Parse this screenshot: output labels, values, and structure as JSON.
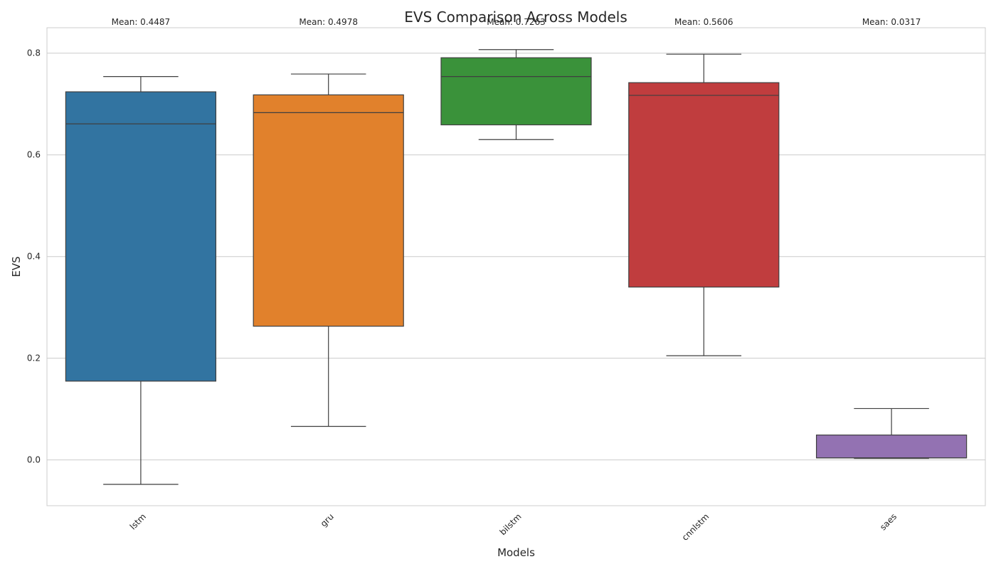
{
  "chart_data": {
    "type": "box",
    "title": "EVS Comparison Across Models",
    "xlabel": "Models",
    "ylabel": "EVS",
    "ylim": [
      -0.09,
      0.85
    ],
    "yticks": [
      0.0,
      0.2,
      0.4,
      0.6,
      0.8
    ],
    "ytick_labels": [
      "0.0",
      "0.2",
      "0.4",
      "0.6",
      "0.8"
    ],
    "grid": true,
    "categories": [
      "lstm",
      "gru",
      "bilstm",
      "cnnlstm",
      "saes"
    ],
    "boxes": [
      {
        "name": "lstm",
        "color": "#3274a1",
        "whisker_low": -0.048,
        "q1": 0.155,
        "median": 0.661,
        "q3": 0.724,
        "whisker_high": 0.754,
        "mean_label": "Mean: 0.4487"
      },
      {
        "name": "gru",
        "color": "#e1812c",
        "whisker_low": 0.066,
        "q1": 0.263,
        "median": 0.683,
        "q3": 0.718,
        "whisker_high": 0.759,
        "mean_label": "Mean: 0.4978"
      },
      {
        "name": "bilstm",
        "color": "#3a923a",
        "whisker_low": 0.63,
        "q1": 0.659,
        "median": 0.754,
        "q3": 0.791,
        "whisker_high": 0.807,
        "mean_label": "Mean: 0.7263"
      },
      {
        "name": "cnnlstm",
        "color": "#c03d3e",
        "whisker_low": 0.205,
        "q1": 0.34,
        "median": 0.717,
        "q3": 0.742,
        "whisker_high": 0.798,
        "mean_label": "Mean: 0.5606"
      },
      {
        "name": "saes",
        "color": "#9372b2",
        "whisker_low": 0.003,
        "q1": 0.004,
        "median": 0.004,
        "q3": 0.049,
        "whisker_high": 0.101,
        "mean_label": "Mean: 0.0317"
      }
    ]
  }
}
